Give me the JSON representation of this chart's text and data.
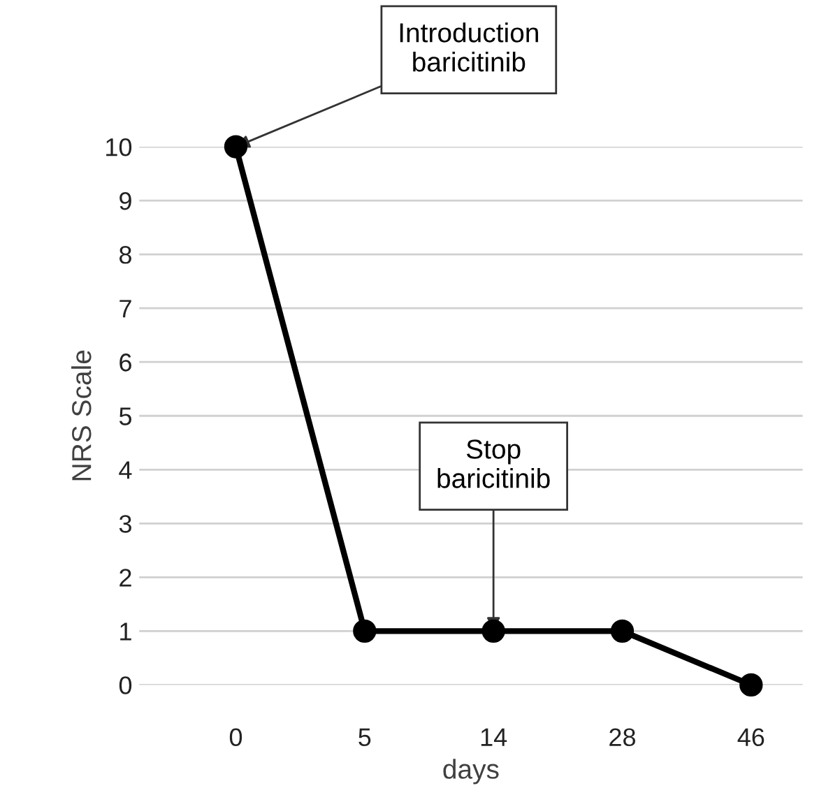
{
  "chart_data": {
    "type": "line",
    "xlabel": "days",
    "ylabel": "NRS Scale",
    "categories": [
      "0",
      "5",
      "14",
      "28",
      "46"
    ],
    "series": [
      {
        "color": "#000000",
        "values": [
          10,
          1,
          1,
          1,
          0
        ]
      }
    ],
    "ylim": [
      0,
      10
    ],
    "yticks": [
      0,
      1,
      2,
      3,
      4,
      5,
      6,
      7,
      8,
      9,
      10
    ],
    "grid": "y",
    "marker": "circle",
    "line_style": "solid",
    "legend": false,
    "annotations": [
      {
        "text": "Introduction\nbaricitinib",
        "x": "0",
        "y": 10
      },
      {
        "text": "Stop\nbaricitinib",
        "x": "14",
        "y": 1
      }
    ]
  }
}
